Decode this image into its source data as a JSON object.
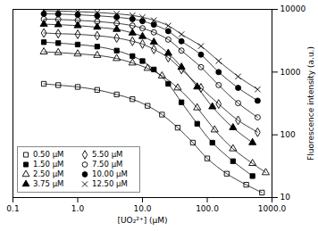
{
  "chart_data": {
    "type": "line",
    "xlabel": "[UO₂²⁺] (μM)",
    "ylabel": "Fluorescence intensity (a.u.)",
    "log": true,
    "grid": false,
    "legend": "lower left",
    "xlim": [
      0.1,
      1000.0
    ],
    "ylim": [
      10,
      10000
    ],
    "xticks": [
      0.1,
      {
        "value": 1.0,
        "label": "1.0"
      },
      {
        "value": 10.0,
        "label": "10.0"
      },
      {
        "value": 100.0,
        "label": "100.0"
      },
      {
        "value": 1000.0,
        "label": "1000.0"
      }
    ],
    "yticks": [
      10,
      100,
      1000,
      10000
    ],
    "series": [
      {
        "name": "0.50 μM",
        "marker": "open-square",
        "color": "black",
        "x": [
          0.3,
          0.5,
          1.0,
          2.0,
          4.0,
          7.0,
          12.0,
          20.0,
          35.0,
          60.0,
          100.0,
          200.0,
          400.0,
          700.0
        ],
        "values": [
          650,
          620,
          580,
          520,
          440,
          370,
          290,
          210,
          130,
          75,
          42,
          24,
          16,
          12
        ]
      },
      {
        "name": "1.50 μM",
        "marker": "square",
        "color": "black",
        "x": [
          0.3,
          0.5,
          1.0,
          2.0,
          4.0,
          7.0,
          10.0,
          15.0,
          25.0,
          40.0,
          70.0,
          120.0,
          250.0,
          500.0
        ],
        "values": [
          3000,
          2900,
          2750,
          2550,
          2200,
          1800,
          1500,
          1100,
          650,
          330,
          150,
          75,
          38,
          22
        ]
      },
      {
        "name": "2.50 μM",
        "marker": "open-triangle",
        "color": "black",
        "x": [
          0.3,
          0.5,
          1.0,
          2.0,
          4.0,
          7.0,
          12.0,
          20.0,
          35.0,
          70.0,
          130.0,
          250.0,
          500.0,
          800.0
        ],
        "values": [
          2100,
          2050,
          1950,
          1850,
          1650,
          1400,
          1150,
          870,
          560,
          270,
          120,
          60,
          35,
          25
        ]
      },
      {
        "name": "3.75 μM",
        "marker": "triangle",
        "color": "black",
        "x": [
          0.3,
          0.5,
          1.0,
          2.0,
          4.0,
          7.0,
          10.0,
          15.0,
          25.0,
          40.0,
          70.0,
          120.0,
          250.0,
          500.0
        ],
        "values": [
          5800,
          5700,
          5500,
          5200,
          4800,
          4200,
          3700,
          3000,
          2000,
          1200,
          580,
          280,
          130,
          75
        ]
      },
      {
        "name": "5.50 μM",
        "marker": "open-diamond",
        "color": "black",
        "x": [
          0.3,
          0.5,
          1.0,
          2.0,
          4.0,
          7.0,
          10.0,
          15.0,
          25.0,
          40.0,
          80.0,
          150.0,
          300.0,
          600.0
        ],
        "values": [
          4200,
          4100,
          4000,
          3800,
          3500,
          3100,
          2800,
          2300,
          1700,
          1100,
          560,
          310,
          170,
          110
        ]
      },
      {
        "name": "7.50 μM",
        "marker": "open-circle",
        "color": "black",
        "x": [
          0.3,
          0.5,
          1.0,
          2.0,
          4.0,
          7.0,
          10.0,
          15.0,
          25.0,
          40.0,
          80.0,
          150.0,
          300.0,
          600.0
        ],
        "values": [
          7000,
          6900,
          6700,
          6400,
          6000,
          5500,
          5000,
          4300,
          3300,
          2200,
          1200,
          620,
          320,
          190
        ]
      },
      {
        "name": "10.00 μM",
        "marker": "circle",
        "color": "black",
        "x": [
          0.3,
          0.5,
          1.0,
          2.0,
          4.0,
          7.0,
          10.0,
          15.0,
          25.0,
          40.0,
          80.0,
          150.0,
          300.0,
          600.0
        ],
        "values": [
          8500,
          8400,
          8200,
          7900,
          7500,
          7000,
          6500,
          5700,
          4500,
          3100,
          1900,
          1000,
          560,
          350
        ]
      },
      {
        "name": "12.50 μM",
        "marker": "x",
        "color": "black",
        "x": [
          0.3,
          0.5,
          1.0,
          2.0,
          4.0,
          7.0,
          10.0,
          15.0,
          25.0,
          40.0,
          80.0,
          150.0,
          300.0,
          600.0
        ],
        "values": [
          9500,
          9400,
          9200,
          8900,
          8500,
          8000,
          7500,
          6700,
          5500,
          4000,
          2600,
          1500,
          850,
          530
        ]
      }
    ]
  }
}
